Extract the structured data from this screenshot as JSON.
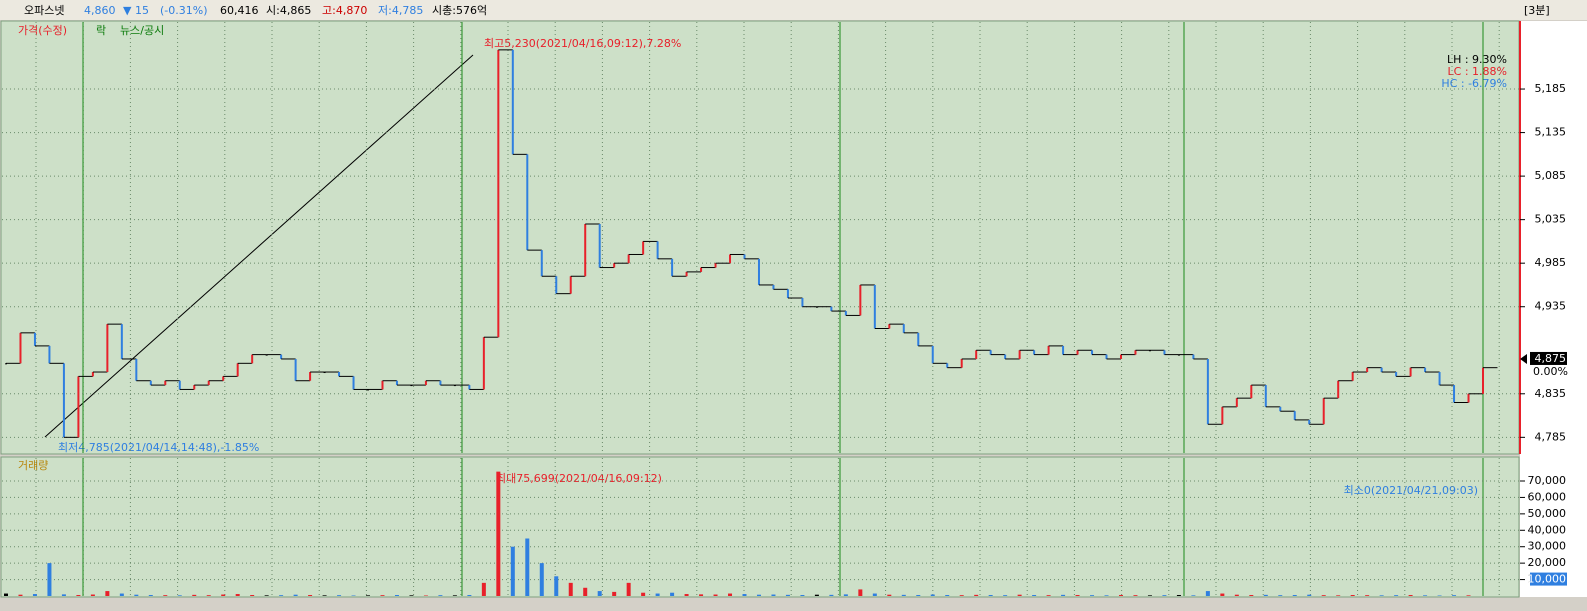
{
  "header": {
    "name": "오파스넷",
    "price": "4,860",
    "change": "▼ 15",
    "change_pct": "(-0.31%)",
    "volume": "60,416",
    "open": "시:4,865",
    "high": "고:4,870",
    "low": "저:4,785",
    "market_cap": "시총:576억",
    "interval": "[3분]"
  },
  "legend": [
    "가격(수정)",
    "락",
    "뉴스/공시"
  ],
  "chart_data": [
    {
      "type": "line",
      "name": "price",
      "values": [
        4870,
        4905,
        4890,
        4870,
        4785,
        4855,
        4860,
        4915,
        4875,
        4850,
        4845,
        4850,
        4840,
        4845,
        4850,
        4855,
        4870,
        4880,
        4880,
        4875,
        4850,
        4860,
        4860,
        4855,
        4840,
        4840,
        4850,
        4845,
        4845,
        4850,
        4845,
        4845,
        4840,
        4900,
        5230,
        5110,
        5000,
        4970,
        4950,
        4970,
        5030,
        4980,
        4985,
        4995,
        5010,
        4990,
        4970,
        4975,
        4980,
        4985,
        4995,
        4990,
        4960,
        4955,
        4945,
        4935,
        4935,
        4930,
        4925,
        4960,
        4910,
        4915,
        4905,
        4890,
        4870,
        4865,
        4875,
        4885,
        4880,
        4875,
        4885,
        4880,
        4890,
        4880,
        4885,
        4880,
        4875,
        4880,
        4885,
        4885,
        4880,
        4880,
        4875,
        4800,
        4820,
        4830,
        4845,
        4820,
        4815,
        4805,
        4800,
        4830,
        4850,
        4860,
        4865,
        4860,
        4855,
        4865,
        4860,
        4845,
        4825,
        4835,
        4865
      ],
      "up_color": "#e8202a",
      "down_color": "#2f7fe0",
      "ylim": [
        4767,
        5262
      ],
      "yticks": [
        {
          "value": 4785,
          "label": "4,785"
        },
        {
          "value": 4835,
          "label": "4,835"
        },
        {
          "value": 4935,
          "label": "4,935"
        },
        {
          "value": 4985,
          "label": "4,985"
        },
        {
          "value": 5035,
          "label": "5,035"
        },
        {
          "value": 5085,
          "label": "5,085"
        },
        {
          "value": 5135,
          "label": "5,135"
        },
        {
          "value": 5185,
          "label": "5,185"
        }
      ],
      "current": {
        "value": 4875,
        "label": "4,875"
      },
      "current_pct": "0.00%",
      "annotations": {
        "high": "최고5,230(2021/04/16,09:12),7.28%",
        "low": "최저4,785(2021/04/14,14:48),-1.85%",
        "lh": "LH :  9.30%",
        "lc": "LC :  1.88%",
        "hc": "HC : -6.79%"
      },
      "grid": true
    },
    {
      "type": "bar",
      "name": "거래량",
      "values": [
        1500,
        800,
        1200,
        20000,
        1000,
        600,
        900,
        3000,
        1500,
        800,
        600,
        500,
        400,
        700,
        500,
        900,
        1200,
        600,
        400,
        500,
        800,
        600,
        400,
        500,
        300,
        400,
        500,
        600,
        400,
        300,
        500,
        400,
        600,
        8000,
        75699,
        30000,
        35000,
        20000,
        12000,
        8000,
        5000,
        3000,
        2500,
        8000,
        2000,
        1500,
        2000,
        1200,
        1000,
        900,
        1500,
        1200,
        800,
        900,
        700,
        600,
        800,
        700,
        1000,
        4000,
        1500,
        800,
        700,
        600,
        900,
        600,
        500,
        700,
        600,
        500,
        800,
        600,
        500,
        700,
        600,
        500,
        400,
        600,
        500,
        400,
        500,
        600,
        400,
        3000,
        1500,
        800,
        600,
        700,
        500,
        600,
        800,
        500,
        400,
        600,
        500,
        400,
        500,
        600,
        400,
        300,
        500,
        400,
        0
      ],
      "ylim": [
        0,
        84000
      ],
      "yticks": [
        {
          "value": 10000,
          "label": "10,000"
        },
        {
          "value": 20000,
          "label": "20,000"
        },
        {
          "value": 30000,
          "label": "30,000"
        },
        {
          "value": 40000,
          "label": "40,000"
        },
        {
          "value": 50000,
          "label": "50,000"
        },
        {
          "value": 60000,
          "label": "60,000"
        },
        {
          "value": 70000,
          "label": "70,000"
        }
      ],
      "current": {
        "value": 10000,
        "label": "10,000"
      },
      "annotations": {
        "max": "최대75,699(2021/04/16,09:12)",
        "min": "최소0(2021/04/21,09:03)"
      },
      "grid": true
    }
  ]
}
